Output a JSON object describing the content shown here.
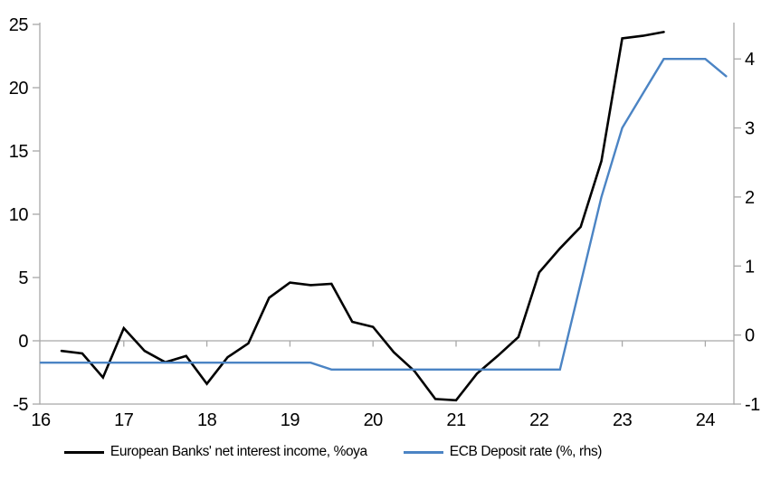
{
  "chart_data": {
    "type": "line",
    "title": "",
    "x_axis": {
      "ticks": [
        16,
        17,
        18,
        19,
        20,
        21,
        22,
        23,
        24
      ],
      "range": [
        16,
        24.35
      ],
      "tick_style": "short ticks hang below the zero line at each year"
    },
    "left_axis": {
      "ticks": [
        -5,
        0,
        5,
        10,
        15,
        20,
        25
      ],
      "range": [
        -5,
        25
      ]
    },
    "right_axis": {
      "ticks": [
        -1,
        0,
        1,
        2,
        3,
        4
      ],
      "range": [
        -1,
        4.5
      ]
    },
    "grid": "zero-line-only",
    "legend_position": "bottom",
    "colors": {
      "axis_gray": "#a8a8a8",
      "nii_black": "#000000",
      "ecb_blue": "#4b84c4"
    },
    "series": [
      {
        "name": "European Banks' net interest income, %oya",
        "axis": "left",
        "color": "#000000",
        "line_width": 2.6,
        "x": [
          16.25,
          16.5,
          16.75,
          17.0,
          17.25,
          17.5,
          17.75,
          18.0,
          18.25,
          18.5,
          18.75,
          19.0,
          19.25,
          19.5,
          19.75,
          20.0,
          20.25,
          20.5,
          20.75,
          21.0,
          21.25,
          21.5,
          21.75,
          22.0,
          22.25,
          22.5,
          22.75,
          23.0,
          23.25,
          23.5
        ],
        "values": [
          -0.8,
          -1.0,
          -2.9,
          1.0,
          -0.8,
          -1.7,
          -1.2,
          -3.4,
          -1.3,
          -0.2,
          3.4,
          4.6,
          4.4,
          4.5,
          1.5,
          1.1,
          -0.9,
          -2.4,
          -4.6,
          -4.7,
          -2.6,
          -1.2,
          0.3,
          5.4,
          7.3,
          9.0,
          14.2,
          23.9,
          24.1,
          24.4
        ]
      },
      {
        "name": "ECB Deposit rate (%, rhs)",
        "axis": "right",
        "color": "#4b84c4",
        "line_width": 2.4,
        "x": [
          16.0,
          19.25,
          19.5,
          22.25,
          22.5,
          22.75,
          23.0,
          23.25,
          23.5,
          24.0,
          24.25
        ],
        "values": [
          -0.4,
          -0.4,
          -0.5,
          -0.5,
          0.75,
          2.0,
          3.0,
          3.5,
          4.0,
          4.0,
          3.75
        ]
      }
    ]
  },
  "legend": {
    "items": [
      {
        "label": "European Banks' net interest income, %oya",
        "color": "#000000"
      },
      {
        "label": "ECB Deposit rate (%, rhs)",
        "color": "#4b84c4"
      }
    ]
  }
}
